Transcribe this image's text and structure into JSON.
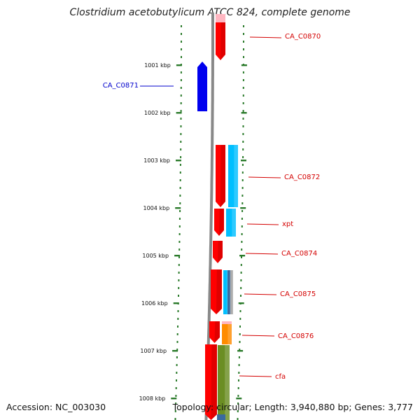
{
  "title": "Clostridium acetobutylicum ATCC 824, complete genome",
  "footer": {
    "accession": "Accession: NC_003030",
    "summary": "Topology: circular; Length: 3,940,880 bp; Genes: 3,777"
  },
  "colors": {
    "backbone": "#888888",
    "tick": "#2a7a2a",
    "forward_label": "#d40000",
    "reverse_label": "#0000cc",
    "red": "#ff0000",
    "blue": "#0000ee",
    "cyan": "#00bfff",
    "orange": "#ff8c00",
    "olive": "#6b8e23",
    "steel": "#3a6aa0",
    "pink": "#ffb6c1"
  },
  "ticks": [
    {
      "label": "1001 kbp"
    },
    {
      "label": "1002 kbp"
    },
    {
      "label": "1003 kbp"
    },
    {
      "label": "1004 kbp"
    },
    {
      "label": "1005 kbp"
    },
    {
      "label": "1006 kbp"
    },
    {
      "label": "1007 kbp"
    },
    {
      "label": "1008 kbp"
    }
  ],
  "genes": [
    {
      "label": "CA_C0870",
      "strand": "forward"
    },
    {
      "label": "CA_C0871",
      "strand": "reverse"
    },
    {
      "label": "CA_C0872",
      "strand": "forward"
    },
    {
      "label": "xpt",
      "strand": "forward"
    },
    {
      "label": "CA_C0874",
      "strand": "forward"
    },
    {
      "label": "CA_C0875",
      "strand": "forward"
    },
    {
      "label": "CA_C0876",
      "strand": "forward"
    },
    {
      "label": "cfa",
      "strand": "forward"
    }
  ]
}
